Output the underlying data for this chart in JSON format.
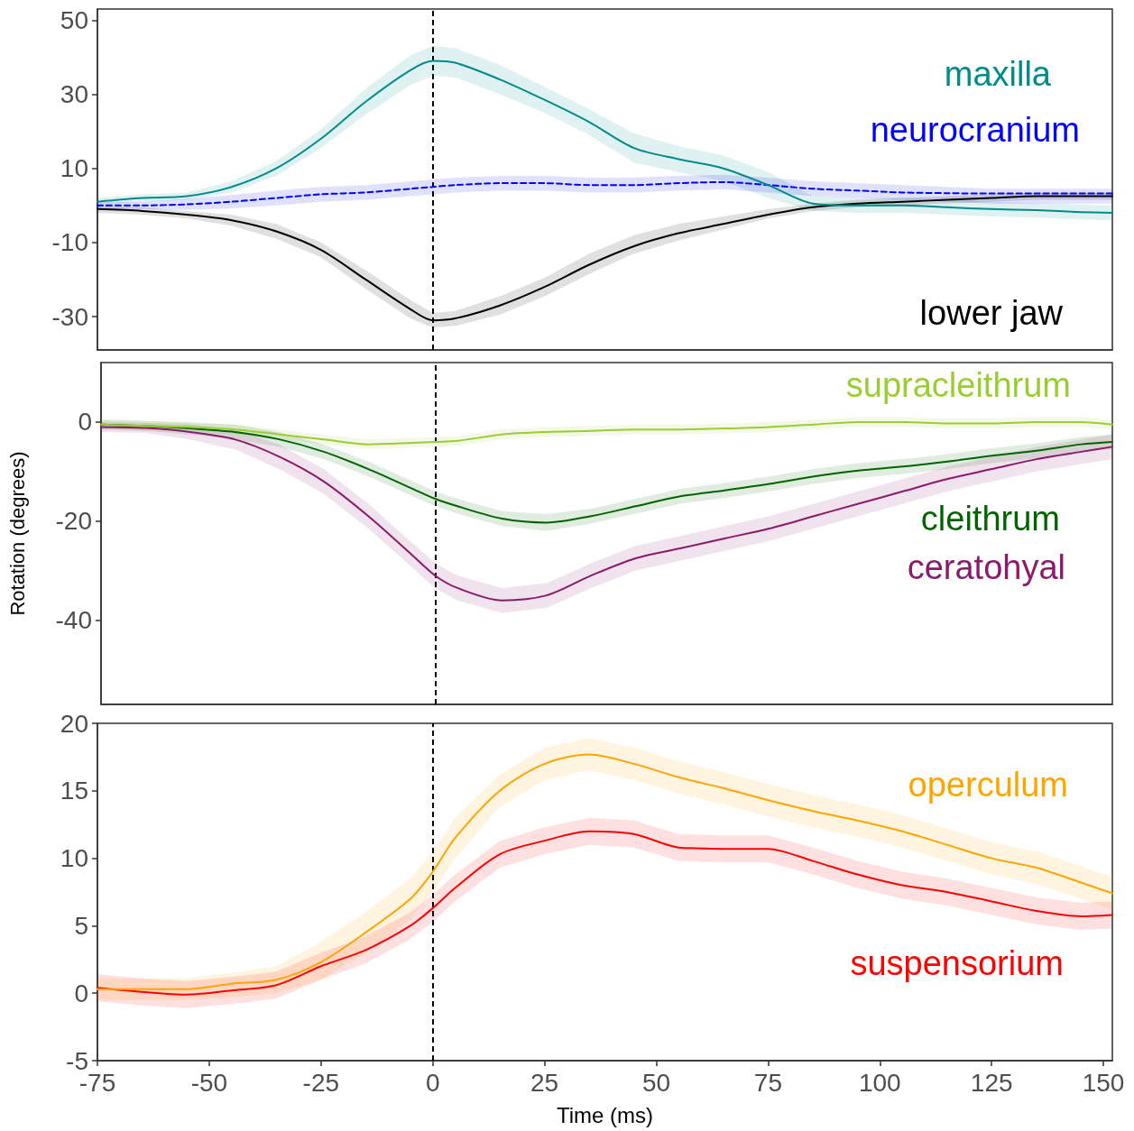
{
  "chart_data": [
    {
      "type": "line",
      "tick_labels": "y",
      "xlim": [
        -75,
        152
      ],
      "ylim": [
        -39,
        53
      ],
      "yticks": [
        -30,
        -10,
        10,
        30,
        50
      ],
      "grid": false,
      "legend": false,
      "x": [
        -75,
        -65,
        -55,
        -45,
        -35,
        -25,
        -15,
        -5,
        0,
        5,
        15,
        25,
        35,
        45,
        55,
        65,
        75,
        85,
        95,
        105,
        115,
        125,
        135,
        145,
        152
      ],
      "ref_lines": [
        {
          "axis": "x",
          "value": 0,
          "line_style": "dashed",
          "color": "#000000"
        }
      ],
      "series": [
        {
          "name": "maxilla",
          "color": "#008b8b",
          "values": [
            1,
            2,
            2.5,
            5,
            10,
            18,
            28,
            36.5,
            39,
            38.5,
            34,
            28.5,
            22.5,
            15.5,
            12.5,
            10,
            5.5,
            0.5,
            0,
            0,
            -0.5,
            -1,
            -1.3,
            -1.8,
            -2
          ],
          "lower": [
            0,
            1,
            1.5,
            3.5,
            8,
            15.5,
            24.5,
            32.5,
            35,
            34.5,
            30,
            25,
            19,
            11.5,
            9,
            6.5,
            2,
            -1.5,
            -2,
            -2,
            -2.5,
            -3,
            -3.3,
            -3.8,
            -4
          ],
          "upper": [
            2,
            3,
            3.5,
            6.5,
            12,
            20.5,
            31.5,
            40.5,
            43,
            42.5,
            38,
            32,
            26,
            19.5,
            16,
            13.5,
            9,
            2.5,
            2,
            2,
            1.5,
            1,
            0.7,
            0.2,
            0
          ]
        },
        {
          "name": "neurocranium",
          "color": "#0000ff",
          "line_style": "dashed",
          "values": [
            0,
            0,
            0.3,
            1,
            2,
            3,
            3.5,
            4.5,
            5,
            5.5,
            6,
            6,
            5.5,
            5.5,
            6,
            6.3,
            5.5,
            4.5,
            4,
            3.5,
            3.3,
            3.2,
            3.2,
            3.2,
            3.2
          ],
          "lower": [
            -1,
            -1,
            -1.2,
            -0.8,
            0,
            1,
            1.5,
            2.5,
            3,
            3.5,
            4,
            4,
            3.5,
            3.5,
            4,
            4.3,
            3.5,
            2.5,
            2,
            1.5,
            1,
            0.5,
            0.5,
            0.5,
            0.5
          ],
          "upper": [
            1,
            1,
            1.8,
            2.8,
            4,
            5,
            5.5,
            6.5,
            7,
            7.5,
            8,
            8,
            7.5,
            7.5,
            8,
            8.3,
            7.5,
            6.5,
            6,
            5.5,
            5,
            4.5,
            4.5,
            4.5,
            4.5
          ]
        },
        {
          "name": "lower jaw",
          "color": "#000000",
          "values": [
            -1,
            -1.5,
            -2.5,
            -4,
            -7,
            -12,
            -20,
            -28,
            -31,
            -30.5,
            -27,
            -22,
            -16,
            -11,
            -7.5,
            -5,
            -2.5,
            -0.5,
            0.5,
            1,
            1.5,
            2,
            2.5,
            2.5,
            2.5
          ],
          "lower": [
            -2,
            -2.5,
            -3.5,
            -5.5,
            -9,
            -14,
            -22.5,
            -30.5,
            -33,
            -32.5,
            -29.5,
            -24.5,
            -18.5,
            -13,
            -9.5,
            -6.5,
            -3.5,
            -1.5,
            -0.5,
            0,
            0.5,
            1,
            1.5,
            1.5,
            1.5
          ],
          "upper": [
            0,
            -0.5,
            -1.5,
            -2.5,
            -5,
            -10,
            -17.5,
            -25.5,
            -29,
            -28.5,
            -24.5,
            -19.5,
            -13,
            -8,
            -5,
            -3,
            -1,
            0.5,
            1.5,
            2,
            2.5,
            3,
            3.5,
            3.5,
            3.5
          ]
        }
      ]
    },
    {
      "type": "line",
      "tick_labels": "y",
      "xlim": [
        -75,
        152
      ],
      "ylim": [
        -57,
        12
      ],
      "yticks": [
        -40,
        -20,
        0
      ],
      "ylabel": "Rotation (degrees)",
      "grid": false,
      "legend": false,
      "x": [
        -75,
        -65,
        -55,
        -45,
        -35,
        -25,
        -15,
        -5,
        0,
        5,
        15,
        25,
        35,
        45,
        55,
        65,
        75,
        85,
        95,
        105,
        115,
        125,
        135,
        145,
        152
      ],
      "ref_lines": [
        {
          "axis": "x",
          "value": 0,
          "line_style": "dashed",
          "color": "#000000"
        }
      ],
      "series": [
        {
          "name": "supracleithrum",
          "color": "#9acd32",
          "values": [
            -0.5,
            -0.8,
            -1,
            -1.5,
            -2.5,
            -3.5,
            -4.5,
            -4.2,
            -4,
            -3.8,
            -2.5,
            -2,
            -1.8,
            -1.5,
            -1.5,
            -1.3,
            -1,
            -0.5,
            0,
            0,
            -0.3,
            -0.3,
            0,
            0,
            -0.5
          ],
          "lower": [
            -1.5,
            -1.8,
            -2,
            -2.5,
            -3.5,
            -4.5,
            -5.5,
            -5.2,
            -5,
            -4.8,
            -3.5,
            -3,
            -2.8,
            -2.5,
            -2.5,
            -2.3,
            -2,
            -1.5,
            -1,
            -1,
            -1.3,
            -1.3,
            -1,
            -1,
            -1.5
          ],
          "upper": [
            0.5,
            0.2,
            0,
            -0.5,
            -1.5,
            -2.5,
            -3.5,
            -3.2,
            -3,
            -2.8,
            -1.5,
            -1,
            -0.8,
            -0.5,
            -0.5,
            -0.3,
            0,
            0.5,
            1,
            1,
            0.7,
            0.7,
            1,
            1,
            0.5
          ]
        },
        {
          "name": "cleithrum",
          "color": "#006400",
          "values": [
            -0.5,
            -0.8,
            -1.3,
            -2,
            -3.5,
            -6,
            -9.5,
            -13.5,
            -15.5,
            -17,
            -19.5,
            -20.3,
            -19,
            -17,
            -15,
            -13.8,
            -12.5,
            -11,
            -9.8,
            -9,
            -8,
            -6.8,
            -5.8,
            -4.5,
            -4
          ],
          "lower": [
            -1.5,
            -1.8,
            -2.5,
            -3.5,
            -5,
            -7.5,
            -11,
            -15,
            -17,
            -18.5,
            -21,
            -22,
            -20.5,
            -18.5,
            -16.5,
            -15.3,
            -14,
            -12.5,
            -11.3,
            -10.5,
            -9.5,
            -8.3,
            -7.3,
            -6,
            -5.5
          ],
          "upper": [
            0.5,
            0.2,
            -0.1,
            -0.5,
            -2,
            -4.5,
            -8,
            -12,
            -14,
            -15.5,
            -18,
            -18.6,
            -17.5,
            -15.5,
            -13.5,
            -12.3,
            -11,
            -9.5,
            -8.3,
            -7.5,
            -6.5,
            -5.3,
            -4.3,
            -3,
            -2.5
          ]
        },
        {
          "name": "ceratohyal",
          "color": "#8b1a6b",
          "values": [
            -1,
            -1.2,
            -2,
            -3.5,
            -7,
            -12,
            -19,
            -27,
            -31,
            -33.5,
            -36,
            -35,
            -31,
            -27.5,
            -25.5,
            -23.5,
            -21.5,
            -19,
            -16.5,
            -14,
            -11.5,
            -9.5,
            -7.5,
            -6,
            -5
          ],
          "lower": [
            -2,
            -2.2,
            -3.5,
            -5.5,
            -9.5,
            -14.5,
            -21.5,
            -29.5,
            -33.5,
            -36,
            -38.5,
            -37.5,
            -33.5,
            -30,
            -28,
            -26,
            -24,
            -21.5,
            -19,
            -16.5,
            -14,
            -12,
            -10,
            -8.5,
            -7.5
          ],
          "upper": [
            0,
            -0.2,
            -0.5,
            -1.5,
            -4.5,
            -9.5,
            -16.5,
            -24.5,
            -28.5,
            -31,
            -33.5,
            -32.5,
            -28.5,
            -25,
            -23,
            -21,
            -19,
            -16.5,
            -14,
            -11.5,
            -9,
            -7,
            -5,
            -3.5,
            -2.5
          ]
        }
      ]
    },
    {
      "type": "line",
      "xlim": [
        -75,
        152
      ],
      "ylim": [
        -5,
        20
      ],
      "yticks": [
        -5,
        0,
        5,
        10,
        15,
        20
      ],
      "xticks": [
        -75,
        -50,
        -25,
        0,
        25,
        50,
        75,
        100,
        125,
        150
      ],
      "xlabel": "Time (ms)",
      "grid": false,
      "legend": false,
      "x": [
        -75,
        -65,
        -55,
        -45,
        -35,
        -25,
        -15,
        -5,
        0,
        5,
        15,
        25,
        35,
        45,
        55,
        65,
        75,
        85,
        95,
        105,
        115,
        125,
        135,
        145,
        152
      ],
      "ref_lines": [
        {
          "axis": "x",
          "value": 0,
          "line_style": "dashed",
          "color": "#000000"
        }
      ],
      "series": [
        {
          "name": "operculum",
          "color": "#ffa500",
          "values": [
            0.3,
            0.3,
            0.3,
            0.7,
            1,
            2.3,
            4.5,
            7,
            9,
            11.5,
            15,
            17,
            17.7,
            17,
            16,
            15.2,
            14.3,
            13.5,
            12.8,
            12,
            11,
            10,
            9.3,
            8.2,
            7.4
          ],
          "lower": [
            -0.5,
            -0.5,
            -0.5,
            -0.3,
            0,
            1,
            3,
            5.5,
            7.5,
            10,
            13.8,
            15.8,
            16.5,
            15.8,
            14.8,
            14,
            13.1,
            12.3,
            11.6,
            10.8,
            9.8,
            8.8,
            8.1,
            7,
            6.2
          ],
          "upper": [
            1.1,
            1.1,
            1.1,
            1.5,
            2,
            3.8,
            6,
            8.5,
            10.5,
            13,
            16.2,
            18.2,
            18.9,
            18.2,
            17.2,
            16.4,
            15.5,
            14.7,
            14,
            13.2,
            12.2,
            11.2,
            10.5,
            9.4,
            8.6
          ]
        },
        {
          "name": "suspensorium",
          "color": "#ff0000",
          "values": [
            0.4,
            0.1,
            -0.1,
            0.2,
            0.6,
            2,
            3.2,
            5,
            6.3,
            7.8,
            10.3,
            11.3,
            12,
            11.8,
            10.8,
            10.7,
            10.7,
            9.8,
            8.8,
            8,
            7.5,
            6.8,
            6.1,
            5.7,
            5.8
          ],
          "lower": [
            -0.6,
            -0.9,
            -1.1,
            -0.8,
            -0.4,
            1,
            2.2,
            4,
            5.3,
            6.8,
            9.3,
            10.3,
            11,
            10.8,
            9.8,
            9.7,
            9.7,
            8.8,
            7.8,
            7,
            6.5,
            5.8,
            5.1,
            4.7,
            4.8
          ],
          "upper": [
            1.4,
            1.1,
            0.9,
            1.2,
            1.6,
            3,
            4.2,
            6,
            7.3,
            8.8,
            11.3,
            12.3,
            13,
            12.8,
            11.8,
            11.7,
            11.7,
            10.8,
            9.8,
            9,
            8.5,
            7.8,
            7.1,
            6.7,
            6.8
          ]
        }
      ]
    }
  ]
}
